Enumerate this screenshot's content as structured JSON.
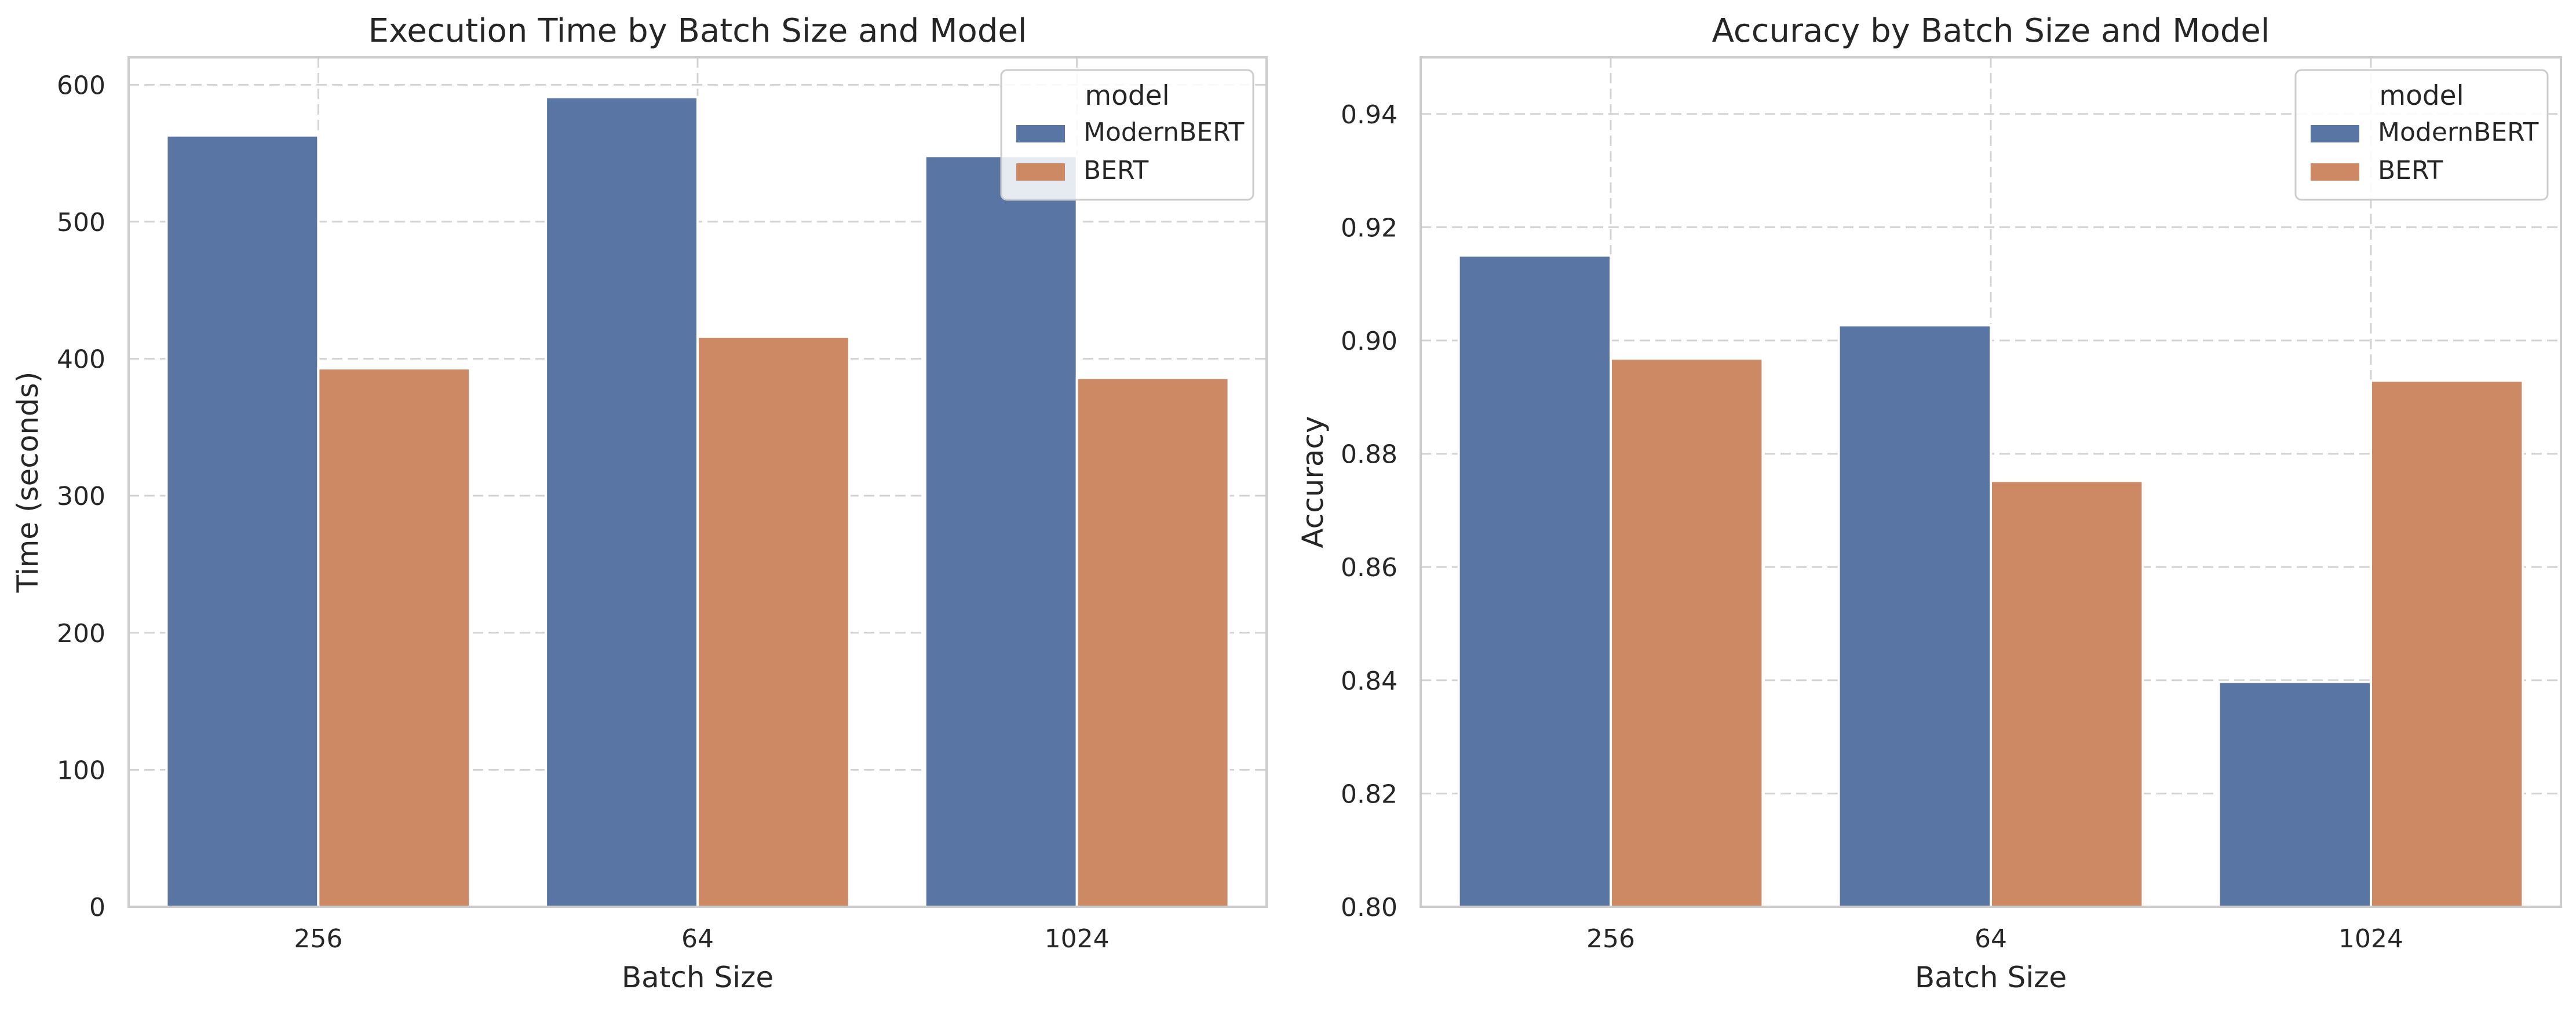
{
  "chart_data": [
    {
      "type": "bar",
      "title": "Execution Time by Batch Size and Model",
      "xlabel": "Batch Size",
      "ylabel": "Time (seconds)",
      "categories": [
        "256",
        "64",
        "1024"
      ],
      "ylim": [
        0,
        620
      ],
      "yticks": [
        0,
        100,
        200,
        300,
        400,
        500,
        600
      ],
      "tick_decimals": 0,
      "grid": true,
      "legend_title": "model",
      "legend_position": "top-right",
      "series": [
        {
          "name": "ModernBERT",
          "color": "#5875a4",
          "values": [
            563,
            591,
            548
          ]
        },
        {
          "name": "BERT",
          "color": "#cc8963",
          "values": [
            393,
            416,
            386
          ]
        }
      ]
    },
    {
      "type": "bar",
      "title": "Accuracy by Batch Size and Model",
      "xlabel": "Batch Size",
      "ylabel": "Accuracy",
      "categories": [
        "256",
        "64",
        "1024"
      ],
      "ylim": [
        0.8,
        0.95
      ],
      "yticks": [
        0.8,
        0.82,
        0.84,
        0.86,
        0.88,
        0.9,
        0.92,
        0.94
      ],
      "tick_decimals": 2,
      "grid": true,
      "legend_title": "model",
      "legend_position": "top-right",
      "series": [
        {
          "name": "ModernBERT",
          "color": "#5875a4",
          "values": [
            0.915,
            0.9027,
            0.8397
          ]
        },
        {
          "name": "BERT",
          "color": "#cc8963",
          "values": [
            0.8968,
            0.8752,
            0.8929
          ]
        }
      ]
    }
  ]
}
